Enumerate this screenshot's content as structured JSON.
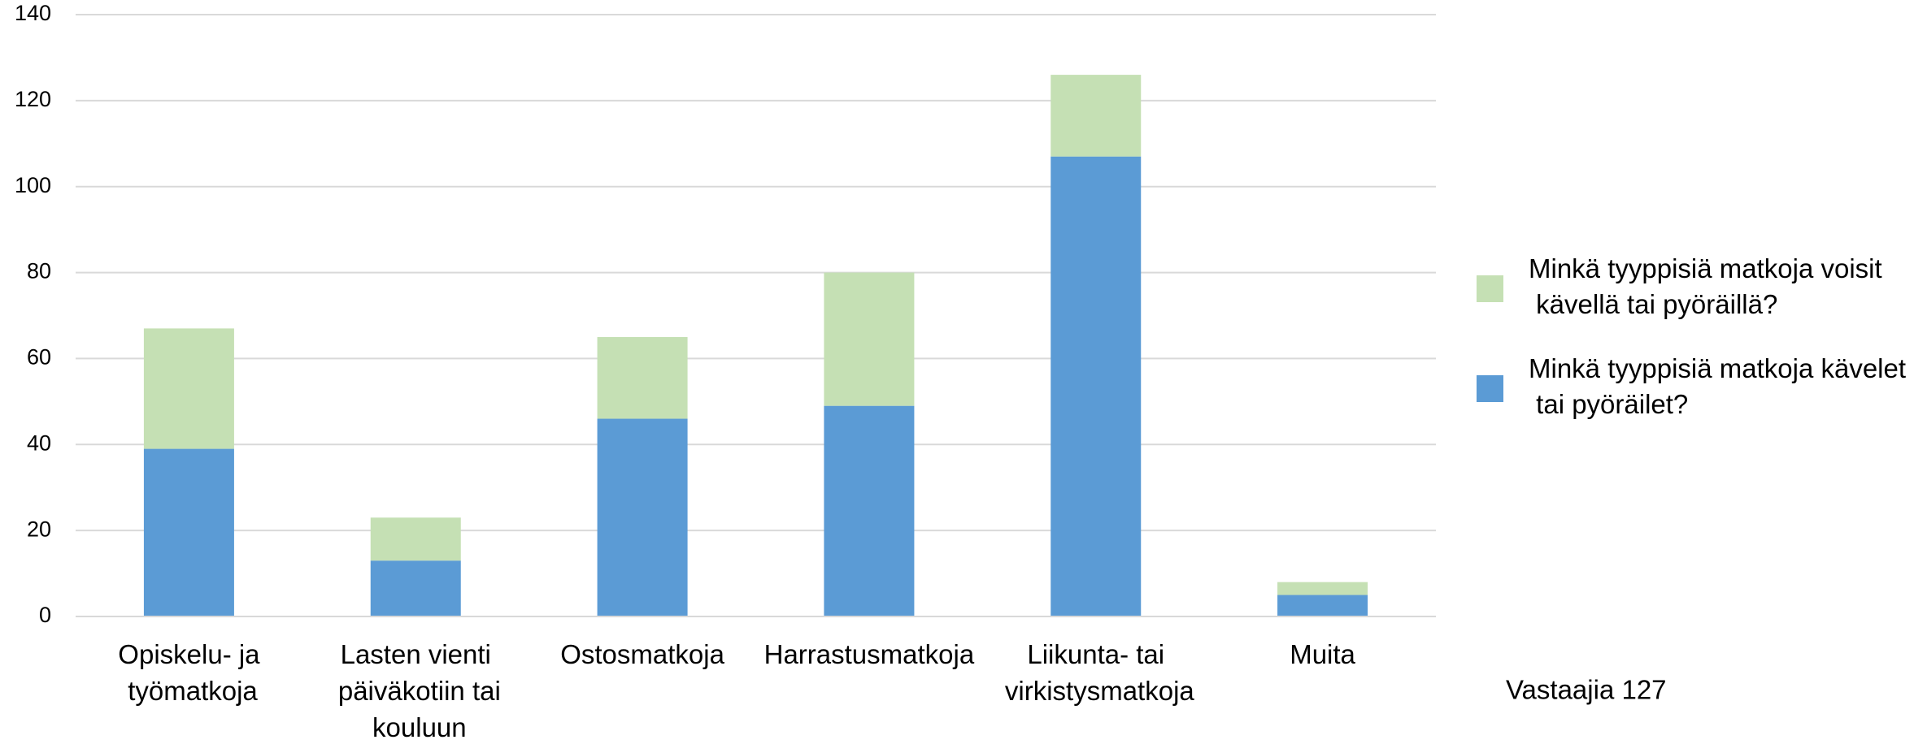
{
  "chart_data": {
    "type": "stacked_bar",
    "categories": [
      "Opiskelu- ja työmatkoja",
      "Lasten vienti päiväkotiin tai kouluun",
      "Ostosmatkoja",
      "Harrastusmatkoja",
      "Liikunta- tai virkistysmatkoja",
      "Muita"
    ],
    "series": [
      {
        "name": "Minkä tyyppisiä matkoja kävelet tai pyöräilet?",
        "color": "#5b9bd5",
        "values": [
          39,
          13,
          46,
          49,
          107,
          5
        ]
      },
      {
        "name": "Minkä tyyppisiä matkoja voisit kävellä tai pyöräillä?",
        "color": "#c5e0b4",
        "values": [
          28,
          10,
          19,
          31,
          19,
          3
        ]
      }
    ],
    "ylim": [
      0,
      140
    ],
    "yticks": [
      0,
      20,
      40,
      60,
      80,
      100,
      120,
      140
    ],
    "grid": true,
    "legend": "right",
    "annotation": "Vastaajia 127"
  }
}
